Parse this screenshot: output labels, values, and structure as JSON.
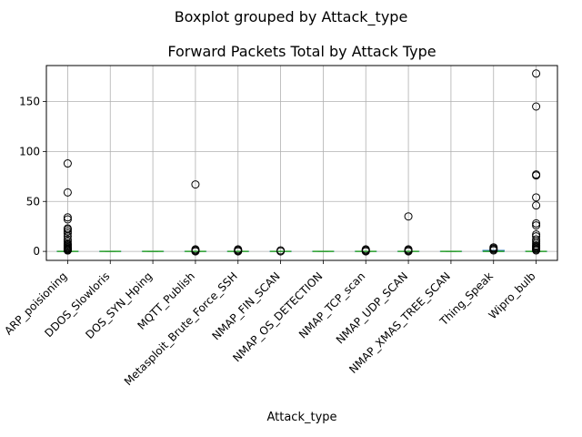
{
  "suptitle": "Boxplot grouped by Attack_type",
  "chart_data": {
    "type": "boxplot",
    "title": "Forward Packets Total by Attack Type",
    "xlabel": "Attack_type",
    "ylabel": "",
    "ylim": [
      -9,
      186
    ],
    "yticks": [
      0,
      50,
      100,
      150
    ],
    "grid": true,
    "categories": [
      "ARP_poisioning",
      "DDOS_Slowloris",
      "DOS_SYN_Hping",
      "MQTT_Publish",
      "Metasploit_Brute_Force_SSH",
      "NMAP_FIN_SCAN",
      "NMAP_OS_DETECTION",
      "NMAP_TCP_scan",
      "NMAP_UDP_SCAN",
      "NMAP_XMAS_TREE_SCAN",
      "Thing_Speak",
      "Wipro_bulb"
    ],
    "boxes": [
      {
        "median": 0,
        "q1": 0,
        "q3": 0,
        "whislo": 0,
        "whishi": 0,
        "fliers": [
          1,
          1,
          2,
          2,
          3,
          3,
          4,
          5,
          6,
          7,
          8,
          10,
          12,
          15,
          18,
          20,
          22,
          23,
          32,
          34,
          59,
          88
        ]
      },
      {
        "median": 0,
        "q1": 0,
        "q3": 0,
        "whislo": 0,
        "whishi": 0,
        "fliers": []
      },
      {
        "median": 0,
        "q1": 0,
        "q3": 0,
        "whislo": 0,
        "whishi": 0,
        "fliers": []
      },
      {
        "median": 0,
        "q1": 0,
        "q3": 0,
        "whislo": 0,
        "whishi": 0,
        "fliers": [
          0,
          1,
          1,
          2,
          67
        ]
      },
      {
        "median": 0,
        "q1": 0,
        "q3": 0,
        "whislo": 0,
        "whishi": 0,
        "fliers": [
          0,
          1,
          1,
          2
        ]
      },
      {
        "median": 0,
        "q1": 0,
        "q3": 0,
        "whislo": 0,
        "whishi": 0,
        "fliers": [
          0,
          1
        ]
      },
      {
        "median": 0,
        "q1": 0,
        "q3": 0,
        "whislo": 0,
        "whishi": 0,
        "fliers": []
      },
      {
        "median": 0,
        "q1": 0,
        "q3": 0,
        "whislo": 0,
        "whishi": 0,
        "fliers": [
          0,
          1,
          1,
          2
        ]
      },
      {
        "median": 0,
        "q1": 0,
        "q3": 0,
        "whislo": 0,
        "whishi": 0,
        "fliers": [
          0,
          1,
          1,
          2,
          35
        ]
      },
      {
        "median": 0,
        "q1": 0,
        "q3": 0,
        "whislo": 0,
        "whishi": 0,
        "fliers": []
      },
      {
        "median": 0,
        "q1": 0,
        "q3": 1,
        "whislo": 0,
        "whishi": 1,
        "fliers": [
          1,
          2,
          3,
          4
        ]
      },
      {
        "median": 0,
        "q1": 0,
        "q3": 0,
        "whislo": 0,
        "whishi": 0,
        "fliers": [
          1,
          2,
          3,
          4,
          5,
          6,
          8,
          10,
          12,
          15,
          17,
          26,
          28,
          46,
          54,
          76,
          77,
          145,
          178
        ]
      }
    ],
    "colors": {
      "box": "#1f77b4",
      "median": "#2ca02c",
      "whisker": "#000000",
      "grid": "#b0b0b0",
      "flier_edge": "#000000"
    }
  }
}
